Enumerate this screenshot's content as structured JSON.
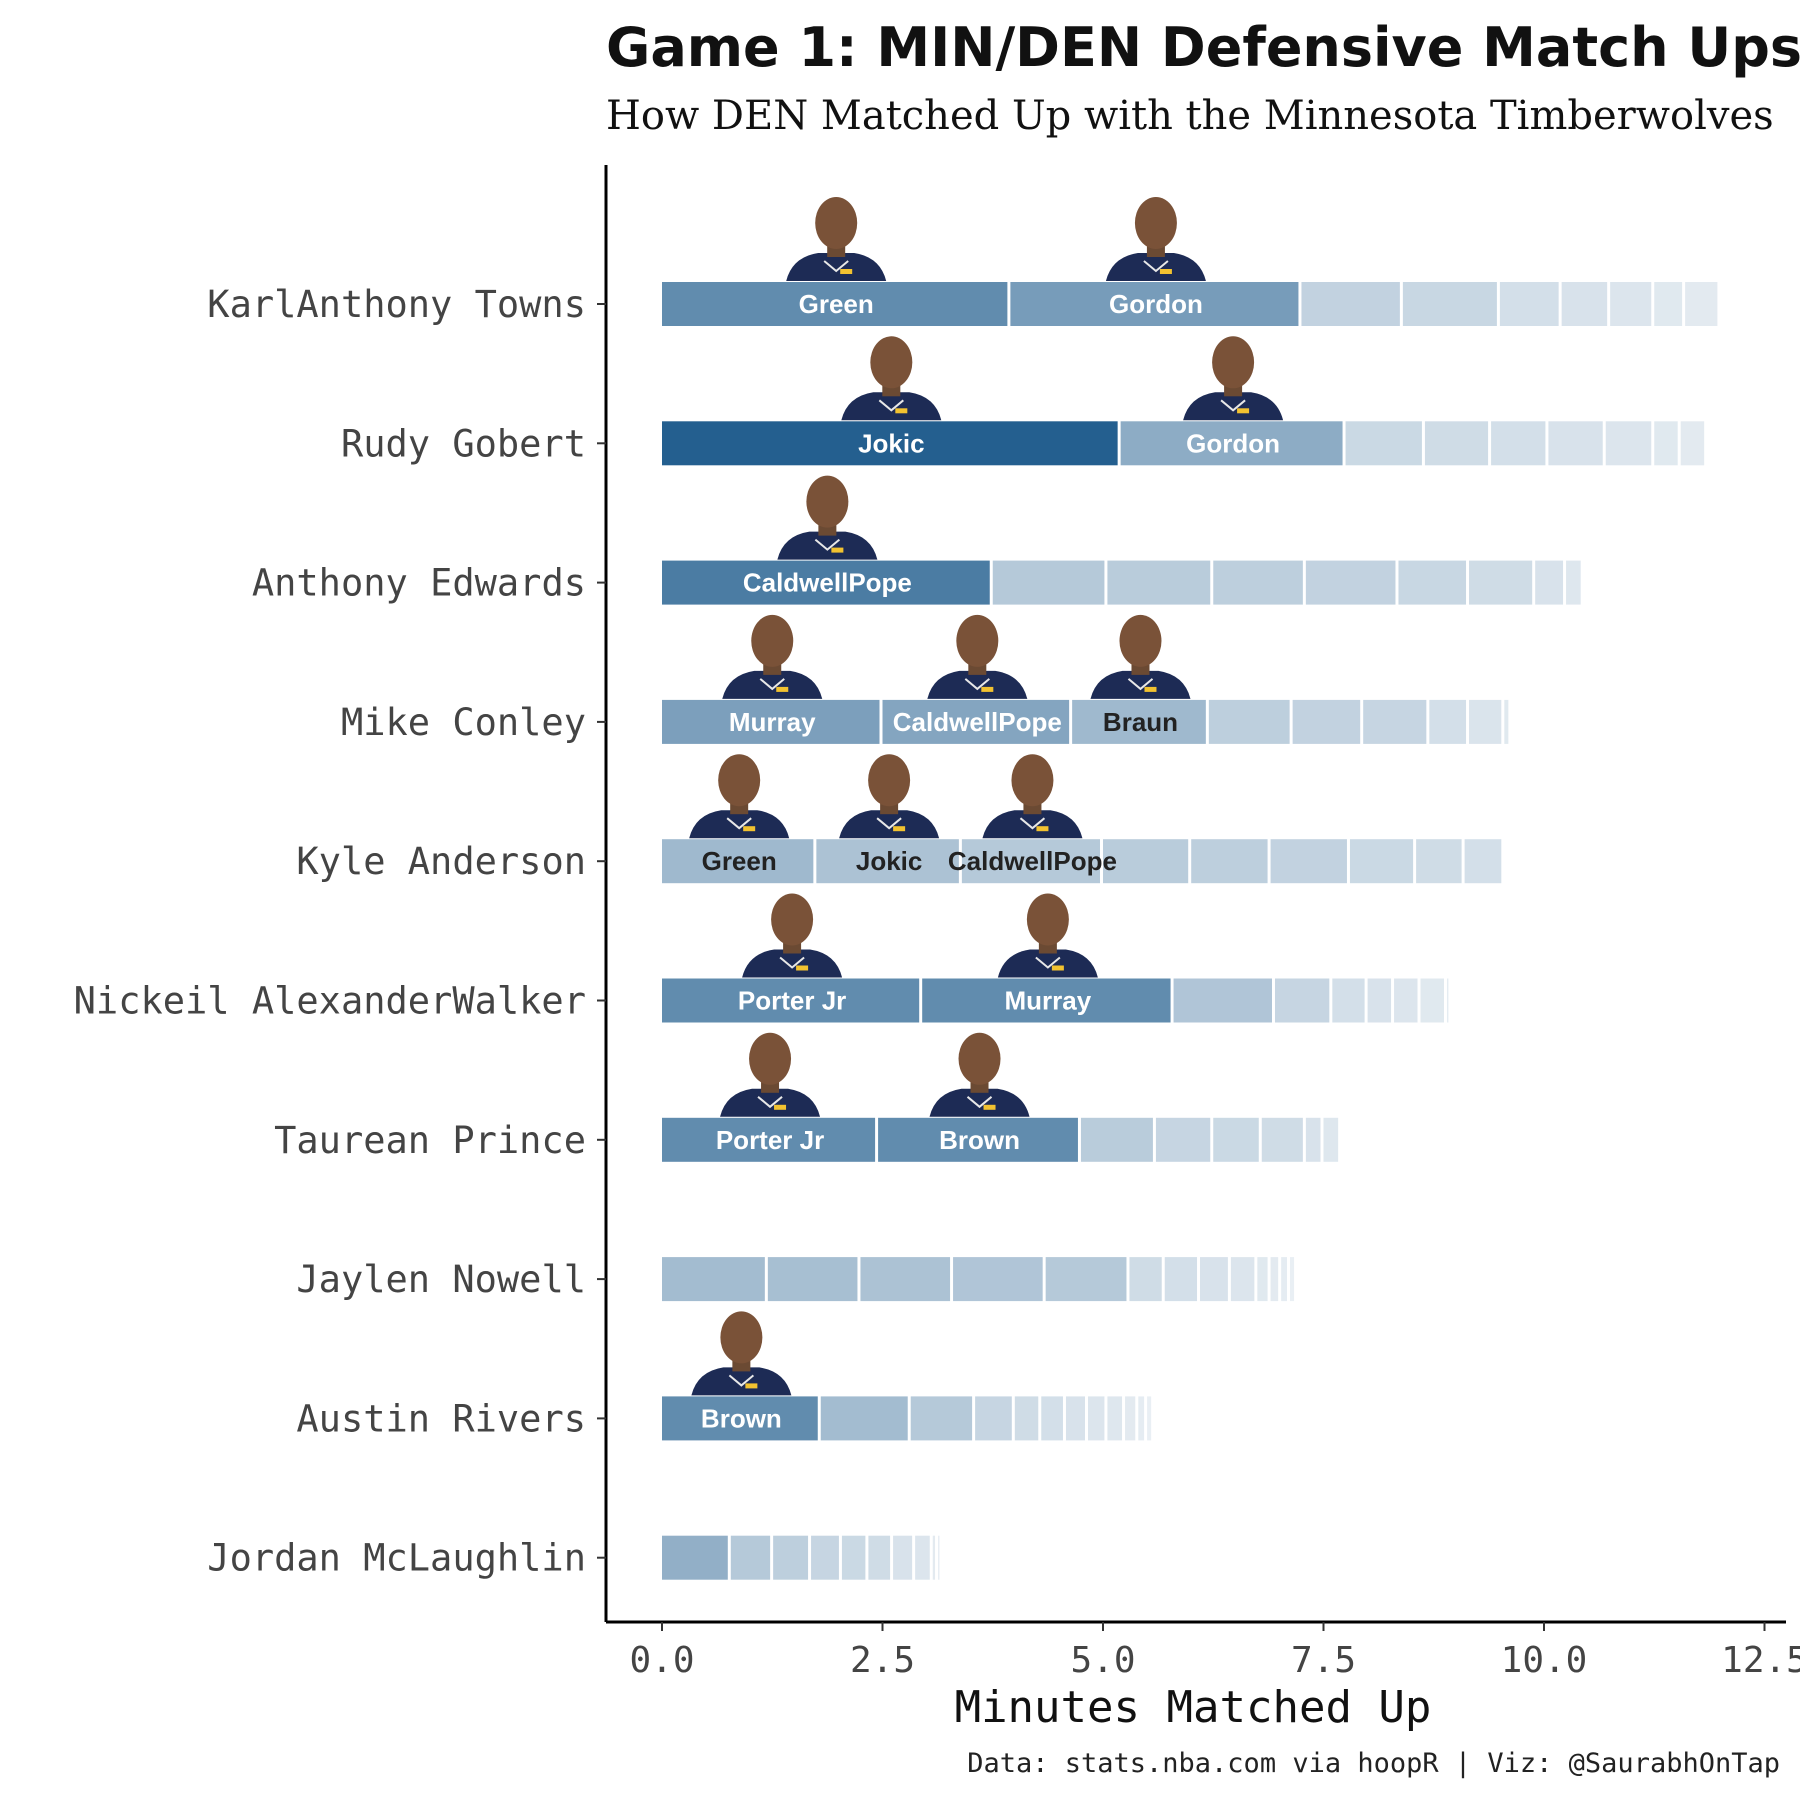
{
  "chart_data": {
    "type": "bar",
    "orientation": "horizontal-stacked",
    "title": "Game 1: MIN/DEN Defensive Match Ups",
    "subtitle": "How DEN Matched Up with the Minnesota Timberwolves",
    "xlabel": "Minutes Matched Up",
    "ylabel": "",
    "caption": "Data: stats.nba.com via hoopR | Viz: @SaurabhOnTap",
    "xlim": [
      0,
      12.5
    ],
    "xticks": [
      "0.0",
      "2.5",
      "5.0",
      "7.5",
      "10.0",
      "12.5"
    ],
    "grid": false,
    "colors": {
      "bar_base": "#245f8f",
      "label_light": "#ffffff",
      "label_dark": "#222222",
      "axis": "#000000"
    },
    "categories": [
      "KarlAnthony Towns",
      "Rudy Gobert",
      "Anthony Edwards",
      "Mike Conley",
      "Kyle Anderson",
      "Nickeil AlexanderWalker",
      "Taurean Prince",
      "Jaylen Nowell",
      "Austin Rivers",
      "Jordan McLaughlin"
    ],
    "rows": [
      {
        "player": "KarlAnthony Towns",
        "segments": [
          {
            "defender": "Green",
            "minutes": 3.95,
            "shade": 0.72
          },
          {
            "defender": "Gordon",
            "minutes": 3.3,
            "shade": 0.62
          },
          {
            "defender": "",
            "minutes": 1.15,
            "shade": 0.28
          },
          {
            "defender": "",
            "minutes": 1.1,
            "shade": 0.25
          },
          {
            "defender": "",
            "minutes": 0.7,
            "shade": 0.2
          },
          {
            "defender": "",
            "minutes": 0.55,
            "shade": 0.18
          },
          {
            "defender": "",
            "minutes": 0.5,
            "shade": 0.16
          },
          {
            "defender": "",
            "minutes": 0.35,
            "shade": 0.14
          },
          {
            "defender": "",
            "minutes": 0.4,
            "shade": 0.13
          }
        ]
      },
      {
        "player": "Rudy Gobert",
        "segments": [
          {
            "defender": "Jokic",
            "minutes": 5.2,
            "shade": 1.0
          },
          {
            "defender": "Gordon",
            "minutes": 2.55,
            "shade": 0.52
          },
          {
            "defender": "",
            "minutes": 0.9,
            "shade": 0.24
          },
          {
            "defender": "",
            "minutes": 0.75,
            "shade": 0.22
          },
          {
            "defender": "",
            "minutes": 0.65,
            "shade": 0.2
          },
          {
            "defender": "",
            "minutes": 0.65,
            "shade": 0.18
          },
          {
            "defender": "",
            "minutes": 0.55,
            "shade": 0.16
          },
          {
            "defender": "",
            "minutes": 0.3,
            "shade": 0.14
          },
          {
            "defender": "",
            "minutes": 0.3,
            "shade": 0.13
          }
        ]
      },
      {
        "player": "Anthony Edwards",
        "segments": [
          {
            "defender": "CaldwellPope",
            "minutes": 3.75,
            "shade": 0.82
          },
          {
            "defender": "",
            "minutes": 1.3,
            "shade": 0.34
          },
          {
            "defender": "",
            "minutes": 1.2,
            "shade": 0.32
          },
          {
            "defender": "",
            "minutes": 1.05,
            "shade": 0.3
          },
          {
            "defender": "",
            "minutes": 1.05,
            "shade": 0.28
          },
          {
            "defender": "",
            "minutes": 0.8,
            "shade": 0.25
          },
          {
            "defender": "",
            "minutes": 0.75,
            "shade": 0.22
          },
          {
            "defender": "",
            "minutes": 0.35,
            "shade": 0.18
          },
          {
            "defender": "",
            "minutes": 0.2,
            "shade": 0.15
          }
        ]
      },
      {
        "player": "Mike Conley",
        "segments": [
          {
            "defender": "Murray",
            "minutes": 2.5,
            "shade": 0.6
          },
          {
            "defender": "CaldwellPope",
            "minutes": 2.15,
            "shade": 0.56
          },
          {
            "defender": "Braun",
            "minutes": 1.55,
            "shade": 0.44
          },
          {
            "defender": "",
            "minutes": 0.95,
            "shade": 0.3
          },
          {
            "defender": "",
            "minutes": 0.8,
            "shade": 0.28
          },
          {
            "defender": "",
            "minutes": 0.75,
            "shade": 0.26
          },
          {
            "defender": "",
            "minutes": 0.45,
            "shade": 0.2
          },
          {
            "defender": "",
            "minutes": 0.4,
            "shade": 0.17
          },
          {
            "defender": "",
            "minutes": 0.08,
            "shade": 0.14
          }
        ]
      },
      {
        "player": "Kyle Anderson",
        "segments": [
          {
            "defender": "Green",
            "minutes": 1.75,
            "shade": 0.44
          },
          {
            "defender": "Jokic",
            "minutes": 1.65,
            "shade": 0.38
          },
          {
            "defender": "CaldwellPope",
            "minutes": 1.6,
            "shade": 0.34
          },
          {
            "defender": "",
            "minutes": 1.0,
            "shade": 0.32
          },
          {
            "defender": "",
            "minutes": 0.9,
            "shade": 0.3
          },
          {
            "defender": "",
            "minutes": 0.9,
            "shade": 0.28
          },
          {
            "defender": "",
            "minutes": 0.75,
            "shade": 0.24
          },
          {
            "defender": "",
            "minutes": 0.55,
            "shade": 0.22
          },
          {
            "defender": "",
            "minutes": 0.45,
            "shade": 0.2
          }
        ]
      },
      {
        "player": "Nickeil AlexanderWalker",
        "segments": [
          {
            "defender": "Porter Jr",
            "minutes": 2.95,
            "shade": 0.72
          },
          {
            "defender": "Murray",
            "minutes": 2.85,
            "shade": 0.72
          },
          {
            "defender": "",
            "minutes": 1.15,
            "shade": 0.36
          },
          {
            "defender": "",
            "minutes": 0.65,
            "shade": 0.26
          },
          {
            "defender": "",
            "minutes": 0.4,
            "shade": 0.2
          },
          {
            "defender": "",
            "minutes": 0.3,
            "shade": 0.18
          },
          {
            "defender": "",
            "minutes": 0.3,
            "shade": 0.16
          },
          {
            "defender": "",
            "minutes": 0.3,
            "shade": 0.14
          },
          {
            "defender": "",
            "minutes": 0.05,
            "shade": 0.12
          }
        ]
      },
      {
        "player": "Taurean Prince",
        "segments": [
          {
            "defender": "Porter Jr",
            "minutes": 2.45,
            "shade": 0.72
          },
          {
            "defender": "Brown",
            "minutes": 2.3,
            "shade": 0.72
          },
          {
            "defender": "",
            "minutes": 0.85,
            "shade": 0.32
          },
          {
            "defender": "",
            "minutes": 0.65,
            "shade": 0.26
          },
          {
            "defender": "",
            "minutes": 0.55,
            "shade": 0.24
          },
          {
            "defender": "",
            "minutes": 0.5,
            "shade": 0.22
          },
          {
            "defender": "",
            "minutes": 0.2,
            "shade": 0.18
          },
          {
            "defender": "",
            "minutes": 0.2,
            "shade": 0.15
          }
        ]
      },
      {
        "player": "Jaylen Nowell",
        "segments": [
          {
            "defender": "",
            "minutes": 1.2,
            "shade": 0.42
          },
          {
            "defender": "",
            "minutes": 1.05,
            "shade": 0.4
          },
          {
            "defender": "",
            "minutes": 1.05,
            "shade": 0.38
          },
          {
            "defender": "",
            "minutes": 1.05,
            "shade": 0.36
          },
          {
            "defender": "",
            "minutes": 0.95,
            "shade": 0.34
          },
          {
            "defender": "",
            "minutes": 0.4,
            "shade": 0.22
          },
          {
            "defender": "",
            "minutes": 0.4,
            "shade": 0.2
          },
          {
            "defender": "",
            "minutes": 0.35,
            "shade": 0.18
          },
          {
            "defender": "",
            "minutes": 0.3,
            "shade": 0.16
          },
          {
            "defender": "",
            "minutes": 0.15,
            "shade": 0.14
          },
          {
            "defender": "",
            "minutes": 0.12,
            "shade": 0.13
          },
          {
            "defender": "",
            "minutes": 0.1,
            "shade": 0.12
          },
          {
            "defender": "",
            "minutes": 0.08,
            "shade": 0.1
          }
        ]
      },
      {
        "player": "Austin Rivers",
        "segments": [
          {
            "defender": "Brown",
            "minutes": 1.8,
            "shade": 0.72
          },
          {
            "defender": "",
            "minutes": 1.02,
            "shade": 0.42
          },
          {
            "defender": "",
            "minutes": 0.73,
            "shade": 0.34
          },
          {
            "defender": "",
            "minutes": 0.45,
            "shade": 0.26
          },
          {
            "defender": "",
            "minutes": 0.3,
            "shade": 0.22
          },
          {
            "defender": "",
            "minutes": 0.28,
            "shade": 0.2
          },
          {
            "defender": "",
            "minutes": 0.25,
            "shade": 0.18
          },
          {
            "defender": "",
            "minutes": 0.22,
            "shade": 0.16
          },
          {
            "defender": "",
            "minutes": 0.2,
            "shade": 0.15
          },
          {
            "defender": "",
            "minutes": 0.15,
            "shade": 0.13
          },
          {
            "defender": "",
            "minutes": 0.1,
            "shade": 0.12
          },
          {
            "defender": "",
            "minutes": 0.08,
            "shade": 0.1
          }
        ]
      },
      {
        "player": "Jordan McLaughlin",
        "segments": [
          {
            "defender": "",
            "minutes": 0.78,
            "shade": 0.5
          },
          {
            "defender": "",
            "minutes": 0.48,
            "shade": 0.34
          },
          {
            "defender": "",
            "minutes": 0.43,
            "shade": 0.3
          },
          {
            "defender": "",
            "minutes": 0.35,
            "shade": 0.26
          },
          {
            "defender": "",
            "minutes": 0.3,
            "shade": 0.24
          },
          {
            "defender": "",
            "minutes": 0.28,
            "shade": 0.22
          },
          {
            "defender": "",
            "minutes": 0.25,
            "shade": 0.18
          },
          {
            "defender": "",
            "minutes": 0.2,
            "shade": 0.16
          },
          {
            "defender": "",
            "minutes": 0.06,
            "shade": 0.13
          },
          {
            "defender": "",
            "minutes": 0.05,
            "shade": 0.11
          }
        ]
      }
    ]
  }
}
